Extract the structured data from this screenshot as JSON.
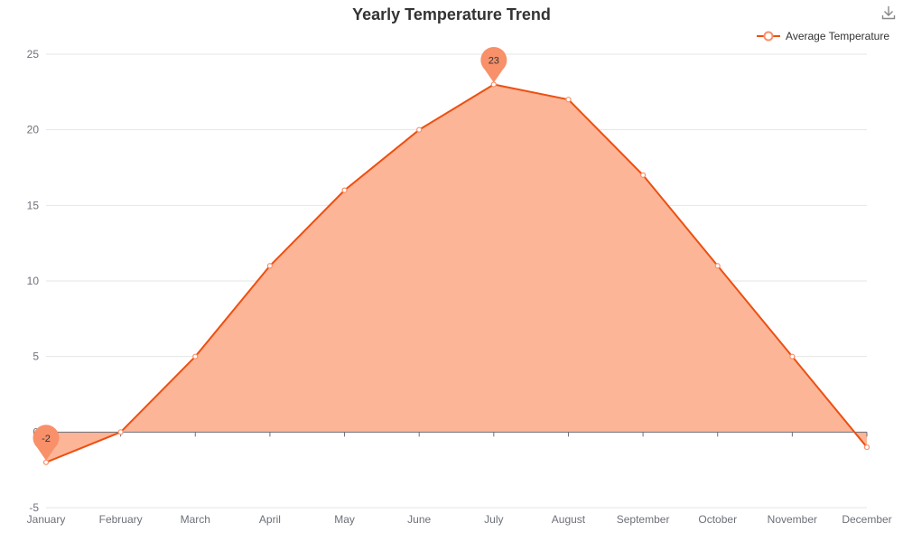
{
  "title": "Yearly Temperature Trend",
  "toolbox": {
    "download_icon": "download-icon"
  },
  "legend": {
    "label": "Average Temperature"
  },
  "colors": {
    "line": "#ee4f10",
    "area": "#fdb597",
    "pin": "#f8906a",
    "grid": "#e6e6e6",
    "axis": "#6e7079",
    "text": "#6e7079",
    "title": "#333333"
  },
  "chart_data": {
    "type": "area",
    "title": "Yearly Temperature Trend",
    "xlabel": "",
    "ylabel": "",
    "categories": [
      "January",
      "February",
      "March",
      "April",
      "May",
      "June",
      "July",
      "August",
      "September",
      "October",
      "November",
      "December"
    ],
    "series": [
      {
        "name": "Average Temperature",
        "values": [
          -2,
          0,
          5,
          11,
          16,
          20,
          23,
          22,
          17,
          11,
          5,
          -1
        ]
      }
    ],
    "ylim": [
      -5,
      25
    ],
    "yticks": [
      -5,
      0,
      5,
      10,
      15,
      20,
      25
    ],
    "grid": true,
    "legend_position": "top-right",
    "mark_points": [
      {
        "type": "max",
        "label": "23",
        "category": "July",
        "value": 23
      },
      {
        "type": "min",
        "label": "-2",
        "category": "January",
        "value": -2
      }
    ]
  }
}
